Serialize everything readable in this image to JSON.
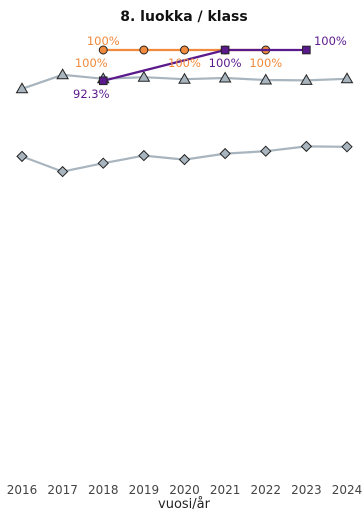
{
  "chart_data": {
    "type": "line",
    "title": "8. luokka / klass",
    "xlabel": "vuosi/år",
    "ylabel": "",
    "x": [
      2016,
      2017,
      2018,
      2019,
      2020,
      2021,
      2022,
      2023,
      2024
    ],
    "ylim": [
      0,
      100
    ],
    "grid": false,
    "legend": "none",
    "series": [
      {
        "marker": "circle",
        "color": "#f08a3c",
        "x": [
          2018,
          2019,
          2020,
          2021,
          2022
        ],
        "values": [
          100,
          100,
          100,
          100,
          100
        ],
        "labels": [
          {
            "x": 2018,
            "y": 100,
            "text": "100%",
            "pos": "above"
          },
          {
            "x": 2018,
            "y": 100,
            "text": "100%",
            "pos": "below-left"
          },
          {
            "x": 2020,
            "y": 100,
            "text": "100%",
            "pos": "below"
          },
          {
            "x": 2022,
            "y": 100,
            "text": "100%",
            "pos": "below"
          }
        ]
      },
      {
        "marker": "square",
        "color": "#5b1a8c",
        "x": [
          2018,
          2021,
          2023
        ],
        "values": [
          92.3,
          100,
          100
        ],
        "labels": [
          {
            "x": 2018,
            "y": 92.3,
            "text": "92.3%",
            "pos": "below-left"
          },
          {
            "x": 2021,
            "y": 100,
            "text": "100%",
            "pos": "below"
          },
          {
            "x": 2023,
            "y": 100,
            "text": "100%",
            "pos": "above-right"
          }
        ]
      },
      {
        "marker": "triangle",
        "color": "#a8b5bf",
        "x": [
          2016,
          2017,
          2018,
          2019,
          2020,
          2021,
          2022,
          2023,
          2024
        ],
        "values": [
          90.3,
          93.8,
          92.8,
          93.2,
          92.7,
          93.0,
          92.5,
          92.4,
          92.8
        ],
        "labels": []
      },
      {
        "marker": "diamond",
        "color": "#a8b5bf",
        "x": [
          2016,
          2017,
          2018,
          2019,
          2020,
          2021,
          2022,
          2023,
          2024
        ],
        "values": [
          73.4,
          69.6,
          71.7,
          73.6,
          72.6,
          74.1,
          74.7,
          75.9,
          75.8
        ],
        "labels": []
      }
    ]
  }
}
